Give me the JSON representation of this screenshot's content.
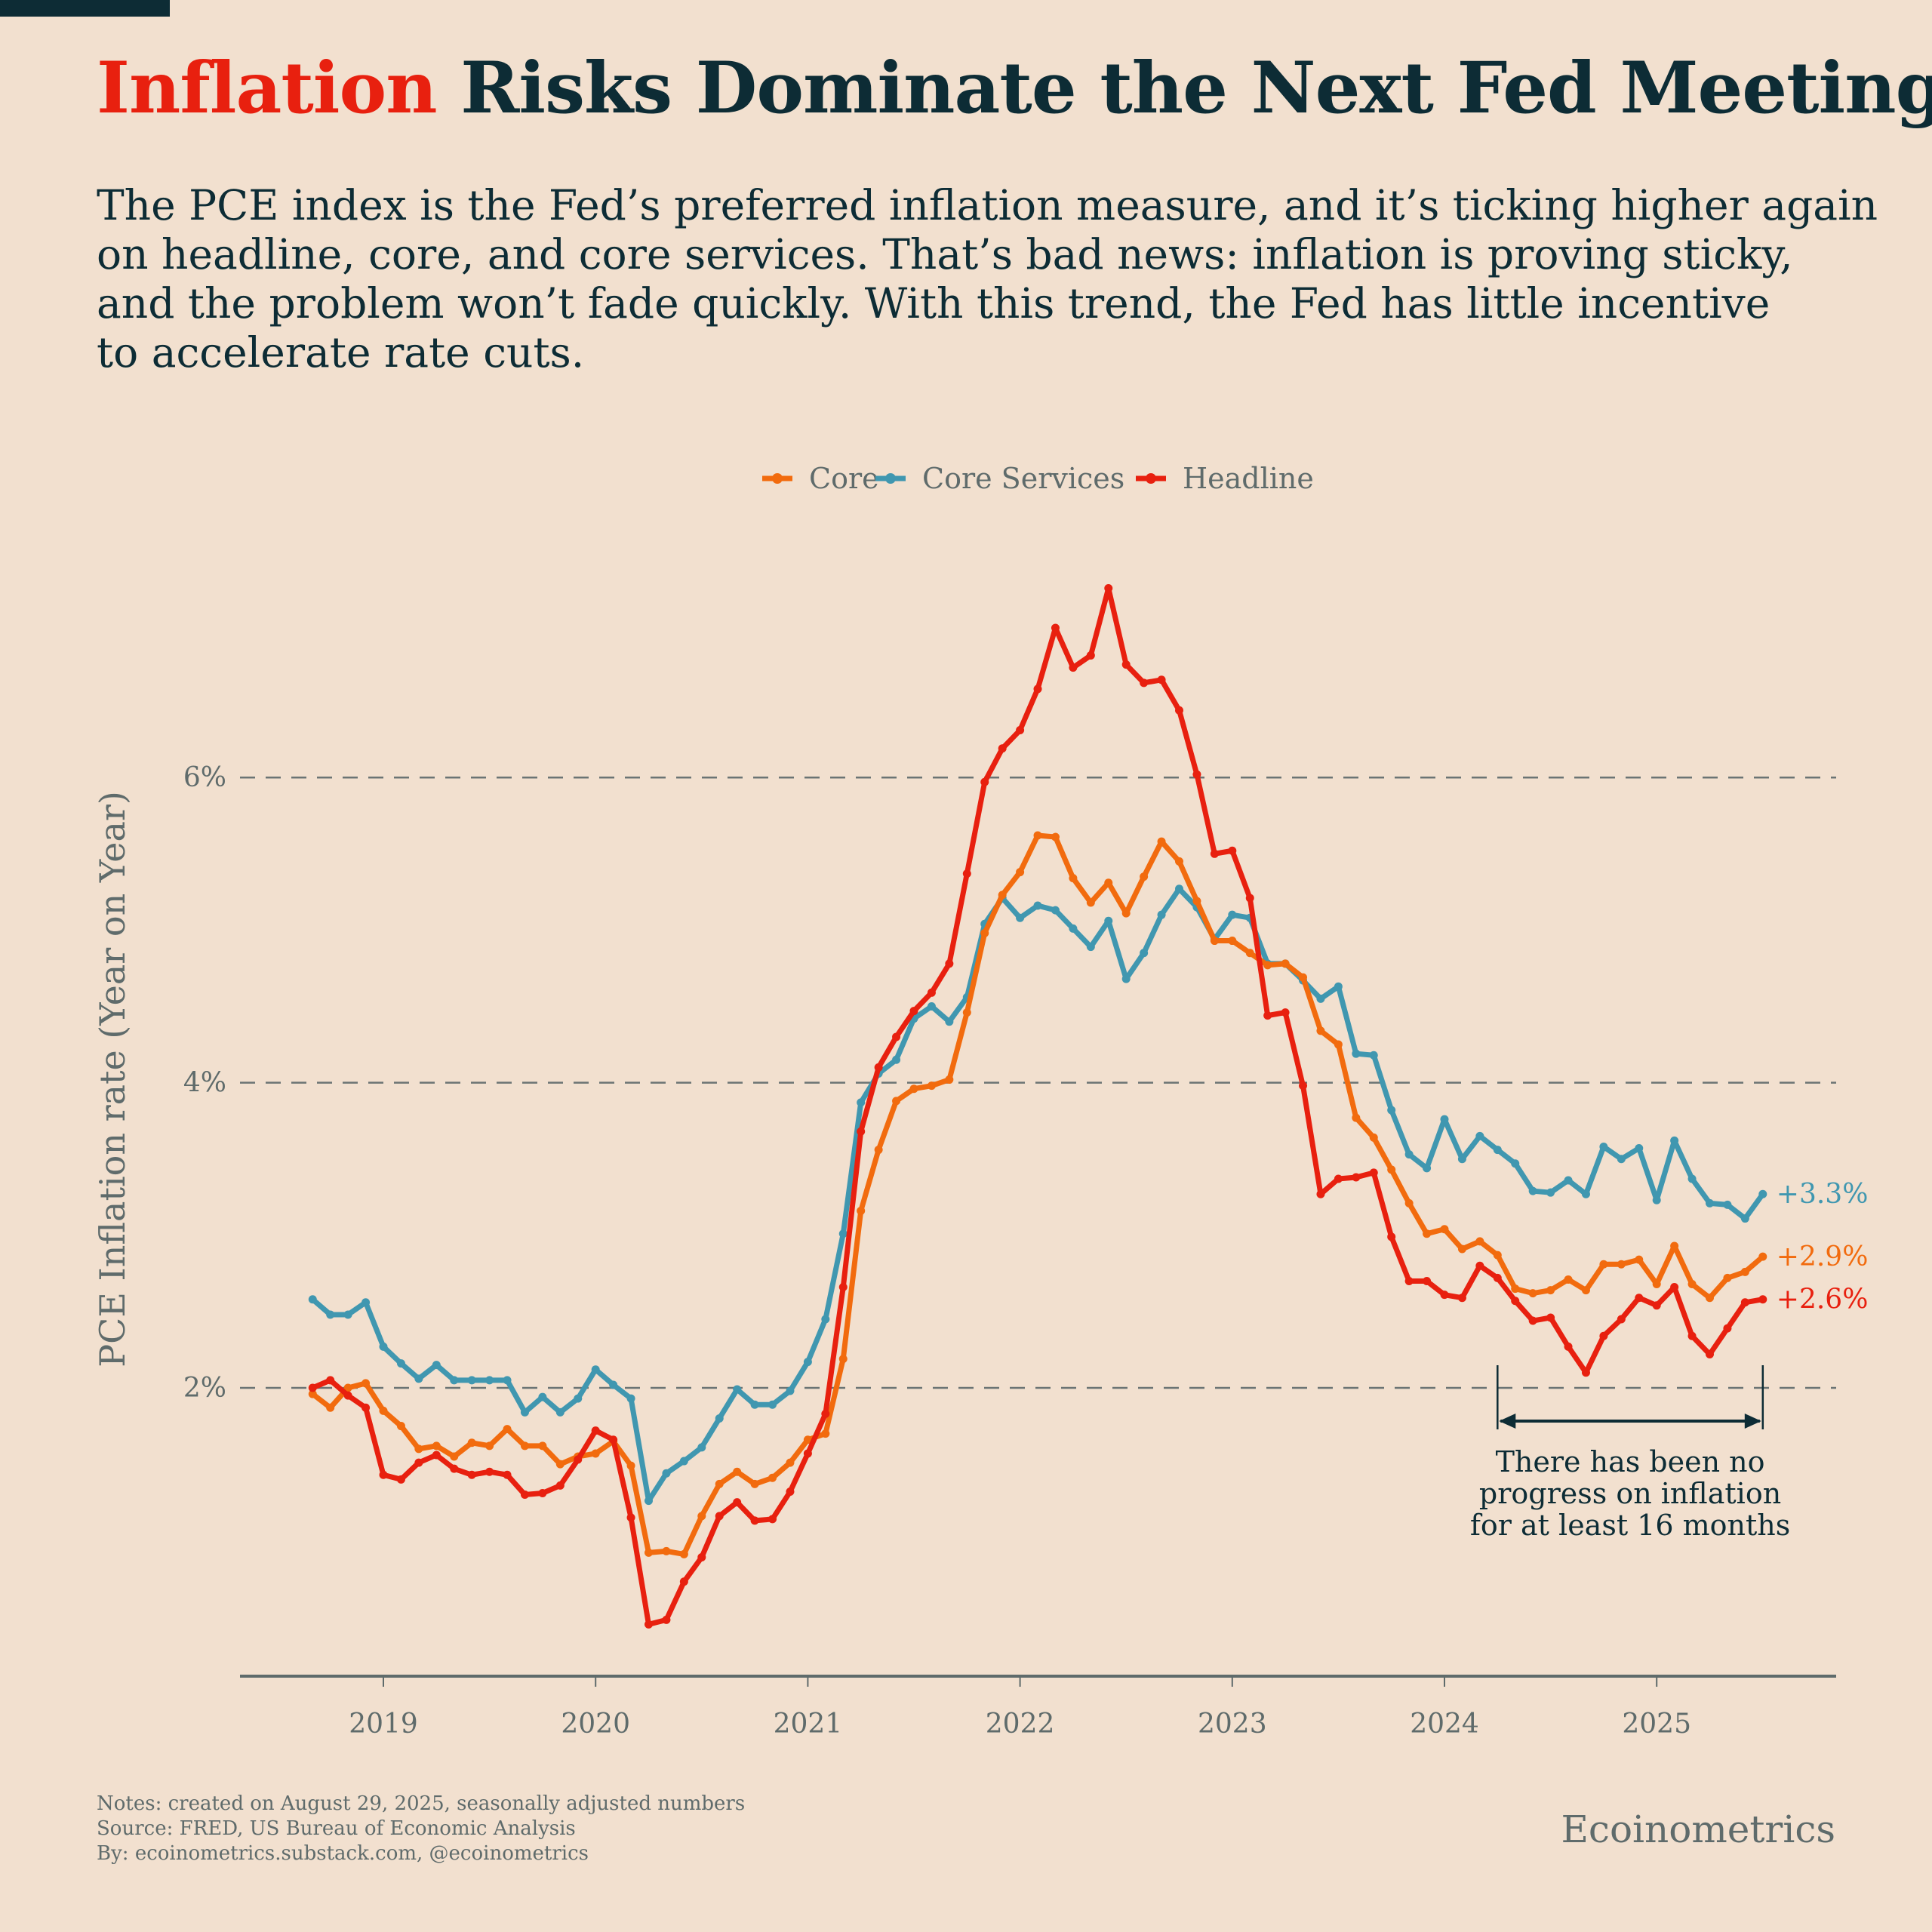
{
  "header": {
    "title_highlight": "Inflation",
    "title_rest": " Risks Dominate the Next Fed Meeting",
    "subtitle_lines": [
      "The PCE index is the Fed’s preferred inflation measure, and it’s ticking higher again",
      "on headline, core, and core services. That’s bad news: inflation is proving sticky,",
      "and the problem won’t fade quickly. With this trend, the Fed has little incentive",
      "to accelerate rate cuts."
    ]
  },
  "footer": {
    "notes": "Notes: created on August 29, 2025, seasonally adjusted numbers",
    "source": "Source: FRED, US Bureau of Economic Analysis",
    "by": "By: ecoinometrics.substack.com, @ecoinometrics",
    "brand": "Ecoinometrics"
  },
  "colors": {
    "background": "#f2e0cf",
    "text": "#0d2c35",
    "muted": "#5f6b6b",
    "core": "#f26b0e",
    "core_services": "#4097b0",
    "headline": "#e8200f"
  },
  "chart_data": {
    "type": "line",
    "title": "",
    "xlabel": "",
    "ylabel": "PCE Inflation rate (Year on Year)",
    "ylim": [
      0.1,
      7.5
    ],
    "yticks": [
      2,
      4,
      6
    ],
    "ytick_labels": [
      "2%",
      "4%",
      "6%"
    ],
    "xtick_labels": [
      "2019",
      "2020",
      "2021",
      "2022",
      "2023",
      "2024",
      "2025"
    ],
    "grid": "horizontal dashed",
    "legend_position": "top-center",
    "x": [
      "2018-09",
      "2018-10",
      "2018-11",
      "2018-12",
      "2019-01",
      "2019-02",
      "2019-03",
      "2019-04",
      "2019-05",
      "2019-06",
      "2019-07",
      "2019-08",
      "2019-09",
      "2019-10",
      "2019-11",
      "2019-12",
      "2020-01",
      "2020-02",
      "2020-03",
      "2020-04",
      "2020-05",
      "2020-06",
      "2020-07",
      "2020-08",
      "2020-09",
      "2020-10",
      "2020-11",
      "2020-12",
      "2021-01",
      "2021-02",
      "2021-03",
      "2021-04",
      "2021-05",
      "2021-06",
      "2021-07",
      "2021-08",
      "2021-09",
      "2021-10",
      "2021-11",
      "2021-12",
      "2022-01",
      "2022-02",
      "2022-03",
      "2022-04",
      "2022-05",
      "2022-06",
      "2022-07",
      "2022-08",
      "2022-09",
      "2022-10",
      "2022-11",
      "2022-12",
      "2023-01",
      "2023-02",
      "2023-03",
      "2023-04",
      "2023-05",
      "2023-06",
      "2023-07",
      "2023-08",
      "2023-09",
      "2023-10",
      "2023-11",
      "2023-12",
      "2024-01",
      "2024-02",
      "2024-03",
      "2024-04",
      "2024-05",
      "2024-06",
      "2024-07",
      "2024-08",
      "2024-09",
      "2024-10",
      "2024-11",
      "2024-12",
      "2025-01",
      "2025-02",
      "2025-03",
      "2025-04",
      "2025-05",
      "2025-06",
      "2025-07"
    ],
    "series": [
      {
        "name": "Core",
        "key": "core",
        "end_label": "+2.9%",
        "values": [
          1.96,
          1.87,
          2.0,
          2.03,
          1.85,
          1.75,
          1.6,
          1.62,
          1.55,
          1.64,
          1.62,
          1.73,
          1.62,
          1.62,
          1.5,
          1.55,
          1.57,
          1.65,
          1.49,
          0.92,
          0.93,
          0.91,
          1.16,
          1.37,
          1.45,
          1.37,
          1.41,
          1.51,
          1.66,
          1.7,
          2.19,
          3.16,
          3.56,
          3.88,
          3.96,
          3.98,
          4.02,
          4.46,
          4.98,
          5.23,
          5.38,
          5.62,
          5.61,
          5.34,
          5.18,
          5.31,
          5.11,
          5.35,
          5.58,
          5.45,
          5.19,
          4.93,
          4.93,
          4.85,
          4.77,
          4.78,
          4.69,
          4.34,
          4.25,
          3.77,
          3.64,
          3.43,
          3.21,
          3.01,
          3.04,
          2.91,
          2.96,
          2.87,
          2.65,
          2.62,
          2.64,
          2.71,
          2.64,
          2.81,
          2.81,
          2.84,
          2.68,
          2.93,
          2.68,
          2.59,
          2.72,
          2.76,
          2.86
        ]
      },
      {
        "name": "Core Services",
        "key": "core_services",
        "end_label": "+3.3%",
        "values": [
          2.58,
          2.48,
          2.48,
          2.56,
          2.27,
          2.16,
          2.06,
          2.15,
          2.05,
          2.05,
          2.05,
          2.05,
          1.84,
          1.94,
          1.84,
          1.93,
          2.12,
          2.02,
          1.93,
          1.26,
          1.44,
          1.52,
          1.61,
          1.8,
          1.99,
          1.89,
          1.89,
          1.98,
          2.17,
          2.45,
          3.01,
          3.87,
          4.06,
          4.15,
          4.42,
          4.5,
          4.4,
          4.56,
          5.04,
          5.21,
          5.08,
          5.16,
          5.13,
          5.01,
          4.89,
          5.06,
          4.68,
          4.85,
          5.1,
          5.27,
          5.15,
          4.94,
          5.1,
          5.08,
          4.78,
          4.78,
          4.67,
          4.55,
          4.63,
          4.19,
          4.18,
          3.82,
          3.53,
          3.44,
          3.76,
          3.5,
          3.65,
          3.56,
          3.47,
          3.29,
          3.28,
          3.36,
          3.27,
          3.58,
          3.5,
          3.57,
          3.23,
          3.62,
          3.37,
          3.21,
          3.2,
          3.11,
          3.27
        ]
      },
      {
        "name": "Headline",
        "key": "headline",
        "end_label": "+2.6%",
        "values": [
          2.0,
          2.05,
          1.95,
          1.87,
          1.43,
          1.4,
          1.51,
          1.56,
          1.47,
          1.43,
          1.45,
          1.43,
          1.3,
          1.31,
          1.36,
          1.53,
          1.72,
          1.66,
          1.15,
          0.45,
          0.48,
          0.73,
          0.89,
          1.16,
          1.25,
          1.13,
          1.14,
          1.32,
          1.57,
          1.83,
          2.66,
          3.68,
          4.1,
          4.3,
          4.47,
          4.59,
          4.78,
          5.37,
          5.97,
          6.19,
          6.31,
          6.58,
          6.98,
          6.72,
          6.8,
          7.24,
          6.74,
          6.62,
          6.64,
          6.44,
          6.02,
          5.5,
          5.52,
          5.21,
          4.44,
          4.46,
          3.98,
          3.27,
          3.37,
          3.38,
          3.41,
          2.99,
          2.7,
          2.7,
          2.61,
          2.59,
          2.8,
          2.72,
          2.57,
          2.44,
          2.46,
          2.27,
          2.1,
          2.34,
          2.45,
          2.59,
          2.54,
          2.66,
          2.34,
          2.22,
          2.39,
          2.56,
          2.58
        ]
      }
    ],
    "annotation": {
      "lines": [
        "There has been no",
        "progress on inflation",
        "for at least 16 months"
      ],
      "from": "2024-04",
      "to": "2025-07"
    }
  }
}
